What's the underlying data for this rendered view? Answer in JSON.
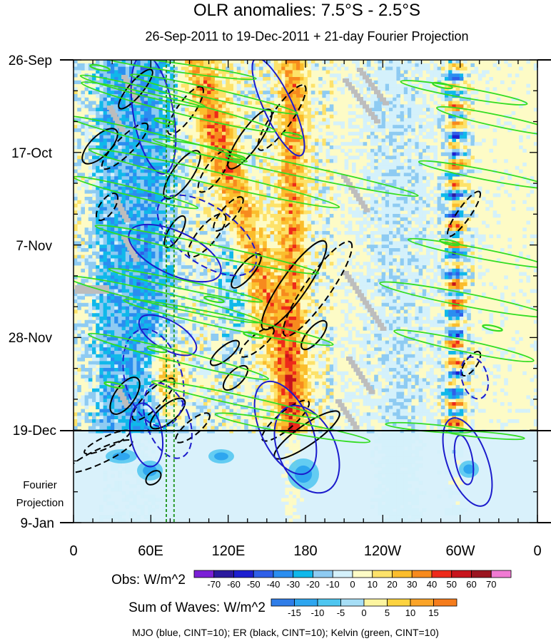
{
  "chart_data": {
    "type": "heatmap",
    "title": "OLR anomalies: 7.5°S - 2.5°S",
    "subtitle": "26-Sep-2011 to 19-Dec-2011 + 21-day Fourier Projection",
    "x_tick_labels": [
      "0",
      "60E",
      "120E",
      "180",
      "120W",
      "60W",
      "0"
    ],
    "x_range_deg_east": [
      0,
      360
    ],
    "y_tick_labels": [
      "26-Sep",
      "17-Oct",
      "7-Nov",
      "28-Nov",
      "19-Dec",
      "9-Jan"
    ],
    "y_range_days": [
      0,
      105
    ],
    "projection_label": [
      "Fourier",
      "Projection"
    ],
    "projection_start": "19-Dec",
    "mjo_reference_lon": [
      72,
      78
    ],
    "obs_colorbar": {
      "label": "Obs: W/m^2",
      "ticks": [
        "-70",
        "-60",
        "-50",
        "-40",
        "-30",
        "-20",
        "-10",
        "0",
        "10",
        "20",
        "30",
        "40",
        "50",
        "60",
        "70"
      ],
      "colors": [
        "#7a1fd6",
        "#2b1a9e",
        "#1d1fd0",
        "#2f5fe8",
        "#2b8ef0",
        "#10b8ea",
        "#8ecbf2",
        "#d4f1fb",
        "#fdfbc6",
        "#fde26a",
        "#fbbd2c",
        "#f78a1e",
        "#ee2a1a",
        "#c8141c",
        "#9b1520",
        "#f07ad3"
      ]
    },
    "waves_colorbar": {
      "label": "Sum of Waves: W/m^2",
      "ticks": [
        "-15",
        "-10",
        "-5",
        "0",
        "5",
        "10",
        "15"
      ],
      "colors": [
        "#2f7de8",
        "#2ea6ef",
        "#4ec6f0",
        "#a6def6",
        "#fdf5a0",
        "#fdd33f",
        "#fba428",
        "#f57c1c"
      ]
    },
    "contours_legend": "MJO (blue, CINT=10); ER (black, CINT=10); Kelvin (green, CINT=10)",
    "contour_colors": {
      "mjo": "#1c1ccc",
      "er": "#000000",
      "kelvin": "#33dd22"
    }
  }
}
